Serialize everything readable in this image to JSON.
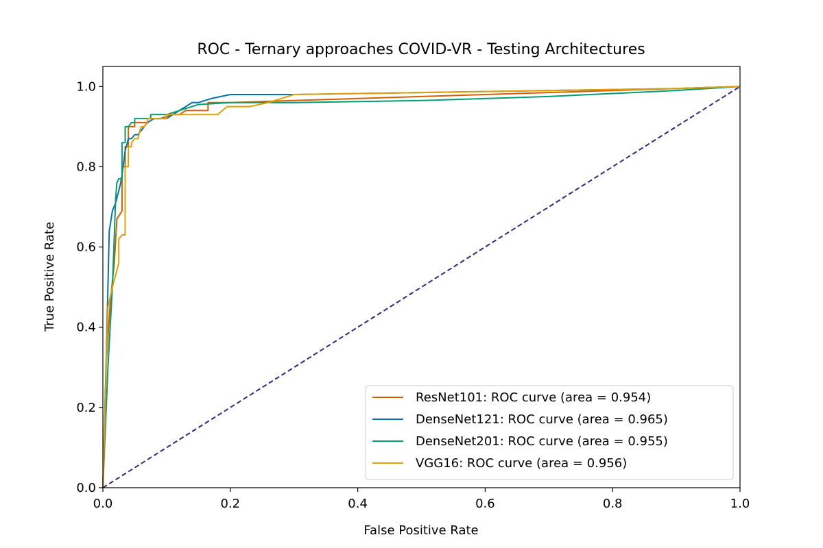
{
  "chart_data": {
    "type": "line",
    "title": "ROC - Ternary approaches COVID-VR - Testing Architectures",
    "xlabel": "False Positive Rate",
    "ylabel": "True Positive Rate",
    "xlim": [
      0.0,
      1.0
    ],
    "ylim": [
      0.0,
      1.05
    ],
    "x_ticks": [
      "0.0",
      "0.2",
      "0.4",
      "0.6",
      "0.8",
      "1.0"
    ],
    "y_ticks": [
      "0.0",
      "0.2",
      "0.4",
      "0.6",
      "0.8",
      "1.0"
    ],
    "grid": false,
    "legend_position": "lower-right",
    "series": [
      {
        "name": "ResNet101: ROC curve (area = 0.954)",
        "color": "#d55e00",
        "x": [
          0.0,
          0.005,
          0.012,
          0.018,
          0.022,
          0.022,
          0.03,
          0.03,
          0.035,
          0.035,
          0.04,
          0.04,
          0.05,
          0.05,
          0.06,
          0.07,
          0.07,
          0.08,
          0.09,
          0.11,
          0.12,
          0.13,
          0.14,
          0.15,
          0.165,
          0.165,
          0.2,
          0.3,
          0.5,
          0.7,
          0.9,
          1.0
        ],
        "y": [
          0.0,
          0.3,
          0.47,
          0.56,
          0.67,
          0.67,
          0.69,
          0.8,
          0.8,
          0.85,
          0.85,
          0.9,
          0.9,
          0.91,
          0.91,
          0.91,
          0.92,
          0.92,
          0.92,
          0.93,
          0.93,
          0.94,
          0.94,
          0.94,
          0.94,
          0.96,
          0.96,
          0.965,
          0.975,
          0.985,
          0.995,
          1.0
        ]
      },
      {
        "name": "DenseNet121: ROC curve (area = 0.965)",
        "color": "#0072b2",
        "x": [
          0.0,
          0.005,
          0.01,
          0.015,
          0.02,
          0.025,
          0.028,
          0.03,
          0.035,
          0.04,
          0.045,
          0.05,
          0.055,
          0.06,
          0.07,
          0.08,
          0.1,
          0.12,
          0.13,
          0.14,
          0.15,
          0.17,
          0.2,
          0.3,
          0.5,
          0.7,
          0.9,
          1.0
        ],
        "y": [
          0.0,
          0.3,
          0.64,
          0.69,
          0.71,
          0.74,
          0.76,
          0.78,
          0.84,
          0.87,
          0.87,
          0.88,
          0.88,
          0.89,
          0.91,
          0.92,
          0.92,
          0.94,
          0.95,
          0.96,
          0.96,
          0.97,
          0.98,
          0.98,
          0.985,
          0.99,
          0.995,
          1.0
        ]
      },
      {
        "name": "DenseNet201: ROC curve (area = 0.955)",
        "color": "#009e73",
        "x": [
          0.0,
          0.008,
          0.015,
          0.02,
          0.022,
          0.025,
          0.03,
          0.03,
          0.035,
          0.035,
          0.04,
          0.045,
          0.045,
          0.05,
          0.05,
          0.075,
          0.075,
          0.1,
          0.15,
          0.2,
          0.3,
          0.5,
          0.7,
          0.9,
          1.0
        ],
        "y": [
          0.0,
          0.3,
          0.5,
          0.72,
          0.76,
          0.77,
          0.77,
          0.86,
          0.86,
          0.9,
          0.9,
          0.91,
          0.91,
          0.91,
          0.92,
          0.92,
          0.93,
          0.93,
          0.955,
          0.96,
          0.96,
          0.965,
          0.975,
          0.99,
          1.0
        ]
      },
      {
        "name": "VGG16: ROC curve (area = 0.956)",
        "color": "#e69f00",
        "x": [
          0.0,
          0.008,
          0.015,
          0.02,
          0.025,
          0.025,
          0.03,
          0.035,
          0.035,
          0.04,
          0.04,
          0.045,
          0.045,
          0.05,
          0.055,
          0.06,
          0.065,
          0.07,
          0.07,
          0.1,
          0.1,
          0.18,
          0.195,
          0.23,
          0.26,
          0.3,
          0.5,
          0.7,
          0.9,
          1.0
        ],
        "y": [
          0.0,
          0.45,
          0.5,
          0.53,
          0.56,
          0.62,
          0.63,
          0.63,
          0.8,
          0.8,
          0.85,
          0.85,
          0.86,
          0.87,
          0.87,
          0.9,
          0.9,
          0.91,
          0.92,
          0.92,
          0.93,
          0.93,
          0.95,
          0.95,
          0.96,
          0.98,
          0.985,
          0.99,
          0.995,
          1.0
        ]
      }
    ],
    "baseline": {
      "color": "#2c2a80",
      "x": [
        0.0,
        1.0
      ],
      "y": [
        0.0,
        1.0
      ]
    }
  }
}
